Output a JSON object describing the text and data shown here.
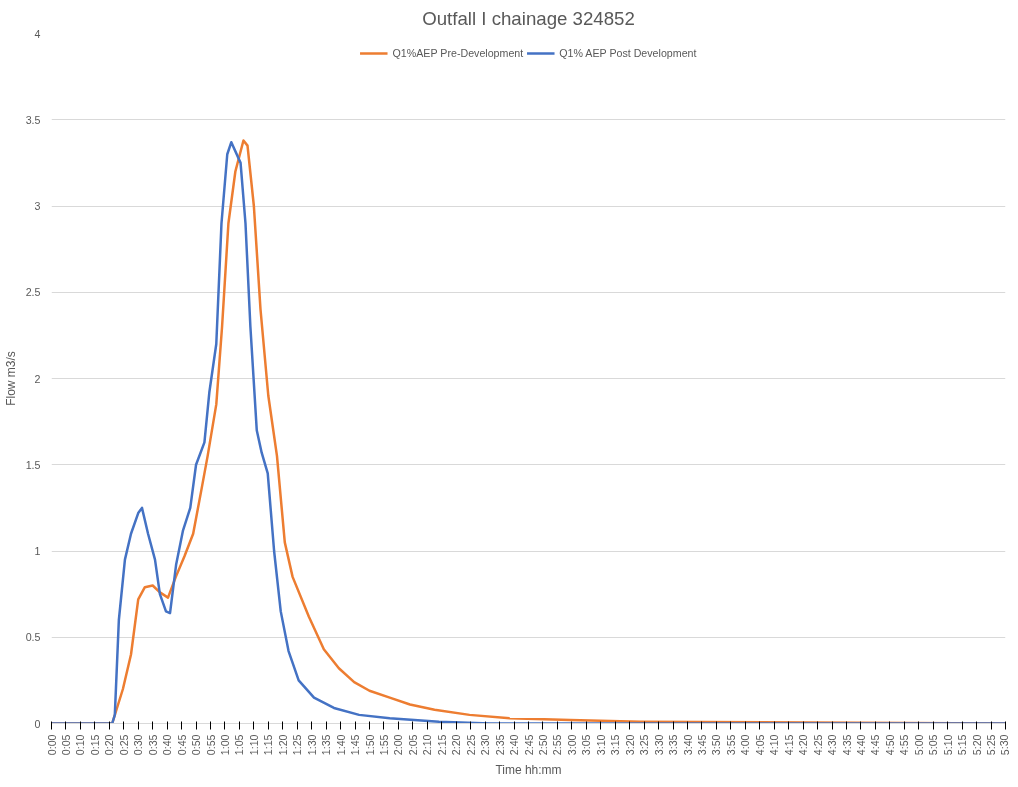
{
  "chart_data": {
    "type": "line",
    "title": "Outfall I chainage 324852",
    "xlabel": "Time hh:mm",
    "ylabel": "Flow m3/s",
    "xlim": [
      0,
      330
    ],
    "ylim": [
      0,
      4
    ],
    "yticks": [
      0,
      0.5,
      1,
      1.5,
      2,
      2.5,
      3,
      3.5,
      4
    ],
    "xticks": [
      {
        "value": 0,
        "label": "0:00"
      },
      {
        "value": 5,
        "label": "0:05"
      },
      {
        "value": 10,
        "label": "0:10"
      },
      {
        "value": 15,
        "label": "0:15"
      },
      {
        "value": 20,
        "label": "0:20"
      },
      {
        "value": 25,
        "label": "0:25"
      },
      {
        "value": 30,
        "label": "0:30"
      },
      {
        "value": 35,
        "label": "0:35"
      },
      {
        "value": 40,
        "label": "0:40"
      },
      {
        "value": 45,
        "label": "0:45"
      },
      {
        "value": 50,
        "label": "0:50"
      },
      {
        "value": 55,
        "label": "0:55"
      },
      {
        "value": 60,
        "label": "1:00"
      },
      {
        "value": 65,
        "label": "1:05"
      },
      {
        "value": 70,
        "label": "1:10"
      },
      {
        "value": 75,
        "label": "1:15"
      },
      {
        "value": 80,
        "label": "1:20"
      },
      {
        "value": 85,
        "label": "1:25"
      },
      {
        "value": 90,
        "label": "1:30"
      },
      {
        "value": 95,
        "label": "1:35"
      },
      {
        "value": 100,
        "label": "1:40"
      },
      {
        "value": 105,
        "label": "1:45"
      },
      {
        "value": 110,
        "label": "1:50"
      },
      {
        "value": 115,
        "label": "1:55"
      },
      {
        "value": 120,
        "label": "2:00"
      },
      {
        "value": 125,
        "label": "2:05"
      },
      {
        "value": 130,
        "label": "2:10"
      },
      {
        "value": 135,
        "label": "2:15"
      },
      {
        "value": 140,
        "label": "2:20"
      },
      {
        "value": 145,
        "label": "2:25"
      },
      {
        "value": 150,
        "label": "2:30"
      },
      {
        "value": 155,
        "label": "2:35"
      },
      {
        "value": 160,
        "label": "2:40"
      },
      {
        "value": 165,
        "label": "2:45"
      },
      {
        "value": 170,
        "label": "2:50"
      },
      {
        "value": 175,
        "label": "2:55"
      },
      {
        "value": 180,
        "label": "3:00"
      },
      {
        "value": 185,
        "label": "3:05"
      },
      {
        "value": 190,
        "label": "3:10"
      },
      {
        "value": 195,
        "label": "3:15"
      },
      {
        "value": 200,
        "label": "3:20"
      },
      {
        "value": 205,
        "label": "3:25"
      },
      {
        "value": 210,
        "label": "3:30"
      },
      {
        "value": 215,
        "label": "3:35"
      },
      {
        "value": 220,
        "label": "3:40"
      },
      {
        "value": 225,
        "label": "3:45"
      },
      {
        "value": 230,
        "label": "3:50"
      },
      {
        "value": 235,
        "label": "3:55"
      },
      {
        "value": 240,
        "label": "4:00"
      },
      {
        "value": 245,
        "label": "4:05"
      },
      {
        "value": 250,
        "label": "4:10"
      },
      {
        "value": 255,
        "label": "4:15"
      },
      {
        "value": 260,
        "label": "4:20"
      },
      {
        "value": 265,
        "label": "4:25"
      },
      {
        "value": 270,
        "label": "4:30"
      },
      {
        "value": 275,
        "label": "4:35"
      },
      {
        "value": 280,
        "label": "4:40"
      },
      {
        "value": 285,
        "label": "4:45"
      },
      {
        "value": 290,
        "label": "4:50"
      },
      {
        "value": 295,
        "label": "4:55"
      },
      {
        "value": 300,
        "label": "5:00"
      },
      {
        "value": 305,
        "label": "5:05"
      },
      {
        "value": 310,
        "label": "5:10"
      },
      {
        "value": 315,
        "label": "5:15"
      },
      {
        "value": 320,
        "label": "5:20"
      },
      {
        "value": 325,
        "label": "5:25"
      },
      {
        "value": 330,
        "label": "5:30"
      }
    ],
    "grid": "y",
    "legend": "top",
    "line_style": "solid",
    "marker": "none",
    "series": [
      {
        "name": "Q1%AEP Pre-Development",
        "color": "#ed7d31",
        "x": [
          0,
          20,
          21,
          24.7,
          27.5,
          30,
          32.3,
          35,
          37.5,
          40.3,
          43,
          46,
          49,
          51.8,
          54,
          57,
          59,
          61.2,
          63.6,
          66.4,
          67.8,
          70,
          72.3,
          75,
          78,
          80.7,
          83.4,
          89,
          94.2,
          99.4,
          104.7,
          110,
          117,
          124,
          132.5,
          144.6,
          158.5,
          179.4,
          203.8,
          330
        ],
        "values": [
          0,
          0,
          0,
          0.2,
          0.4,
          0.72,
          0.79,
          0.8,
          0.76,
          0.73,
          0.85,
          0.97,
          1.1,
          1.35,
          1.55,
          1.85,
          2.3,
          2.9,
          3.2,
          3.38,
          3.35,
          3.0,
          2.4,
          1.9,
          1.55,
          1.05,
          0.85,
          0.62,
          0.43,
          0.32,
          0.24,
          0.19,
          0.15,
          0.11,
          0.08,
          0.05,
          0.03,
          0.02,
          0.01,
          0
        ]
      },
      {
        "name": "Q1% AEP Post Development",
        "color": "#4472c4",
        "x": [
          0,
          21,
          21.9,
          23.3,
          25.4,
          27.5,
          30,
          31.3,
          33.4,
          35.8,
          37.5,
          39.6,
          41,
          43.1,
          45.5,
          48,
          50,
          52.9,
          54.6,
          57,
          58.8,
          60.8,
          62.2,
          65.4,
          67.1,
          68.8,
          71,
          72.7,
          74.8,
          77,
          79.3,
          82,
          85.5,
          90.8,
          97.7,
          106.4,
          117,
          134,
          151.6,
          330
        ],
        "values": [
          0,
          0,
          0.05,
          0.6,
          0.95,
          1.1,
          1.22,
          1.25,
          1.1,
          0.95,
          0.75,
          0.65,
          0.64,
          0.92,
          1.12,
          1.25,
          1.5,
          1.63,
          1.92,
          2.2,
          2.9,
          3.3,
          3.37,
          3.25,
          2.9,
          2.3,
          1.7,
          1.57,
          1.45,
          1.0,
          0.65,
          0.42,
          0.25,
          0.15,
          0.09,
          0.05,
          0.03,
          0.01,
          0,
          0
        ]
      }
    ]
  }
}
